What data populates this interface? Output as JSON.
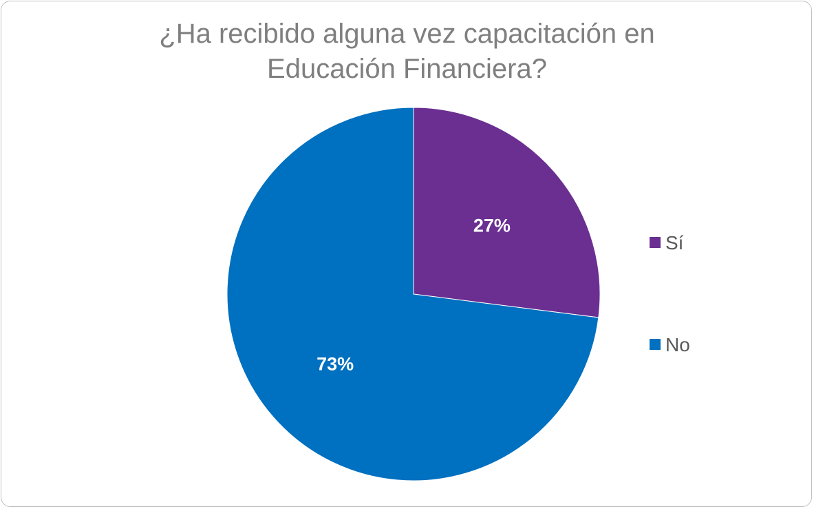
{
  "chart_data": {
    "type": "pie",
    "title_lines": [
      "¿Ha recibido alguna vez capacitación en",
      "Educación Financiera?"
    ],
    "categories": [
      "Sí",
      "No"
    ],
    "values": [
      27,
      73
    ],
    "data_labels": [
      "27%",
      "73%"
    ],
    "colors": [
      "#6a2f91",
      "#0070c0"
    ],
    "legend_position": "right"
  }
}
